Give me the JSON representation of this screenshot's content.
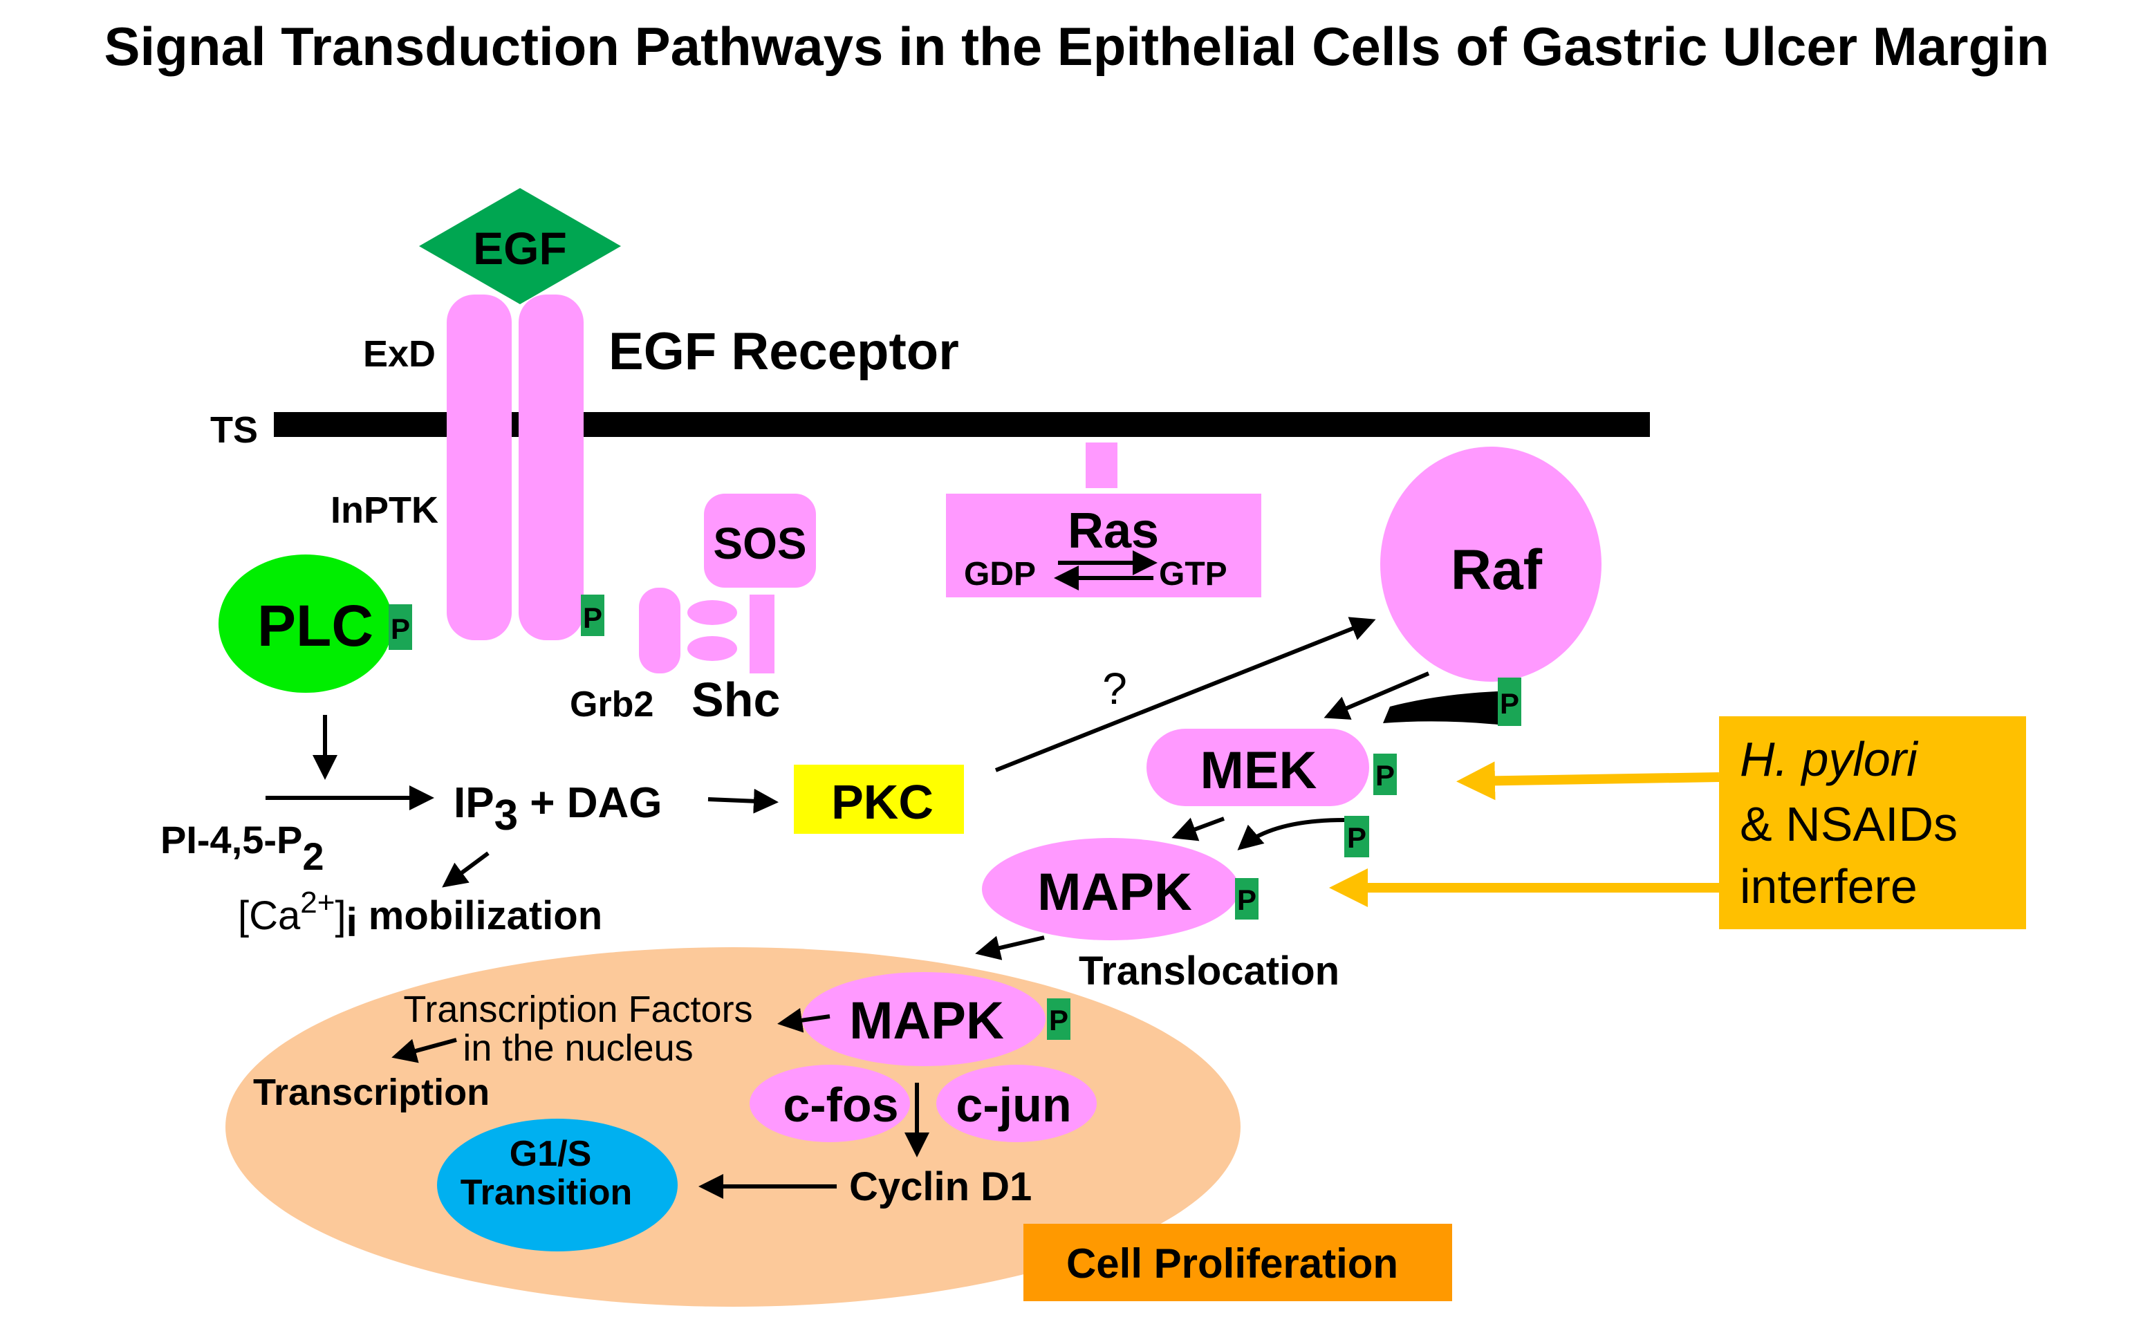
{
  "title": "Signal Transduction Pathways in the Epithelial Cells of Gastric Ulcer Margin",
  "receptor": {
    "ligand": "EGF",
    "label": "EGF Receptor",
    "extracellular": "ExD",
    "membrane": "TS",
    "intracellular": "InPTK"
  },
  "phospho": "P",
  "plc": "PLC",
  "sos": "SOS",
  "grb2": "Grb2",
  "shc": "Shc",
  "ras": {
    "label": "Ras",
    "gdp": "GDP",
    "gtp": "GTP"
  },
  "raf": "Raf",
  "question": "?",
  "mek": "MEK",
  "mapk": "MAPK",
  "translocation": "Translocation",
  "nuclear_mapk": "MAPK",
  "pkc": "PKC",
  "ip3": {
    "ip": "IP",
    "sub": "3",
    "rest": " + DAG"
  },
  "pip2": {
    "main": "PI-4,5-P",
    "sub": "2"
  },
  "calcium": {
    "open": "[Ca",
    "sup": "2+",
    "close": "]",
    "sub": "i",
    "rest": " mobilization"
  },
  "transcription_factors": [
    "Transcription Factors",
    "in the nucleus"
  ],
  "transcription": "Transcription",
  "cfos": "c-fos",
  "cjun": "c-jun",
  "cyclin": "Cyclin D1",
  "g1s": [
    "G1/S",
    "Transition"
  ],
  "cell_proliferation": "Cell Proliferation",
  "interference": {
    "line1": "H. pylori",
    "line2": "& NSAIDs",
    "line3": "interfere"
  },
  "colors": {
    "pink": "#ff99ff",
    "plc_green": "#00ee00",
    "egf_green": "#00a651",
    "p_green": "#1aa655",
    "pkc_yellow": "#ffff00",
    "interfere_orange": "#ffc000",
    "nucleus": "#fcc99a",
    "g1s_blue": "#00b0f0",
    "proliferation": "#ff9900"
  }
}
